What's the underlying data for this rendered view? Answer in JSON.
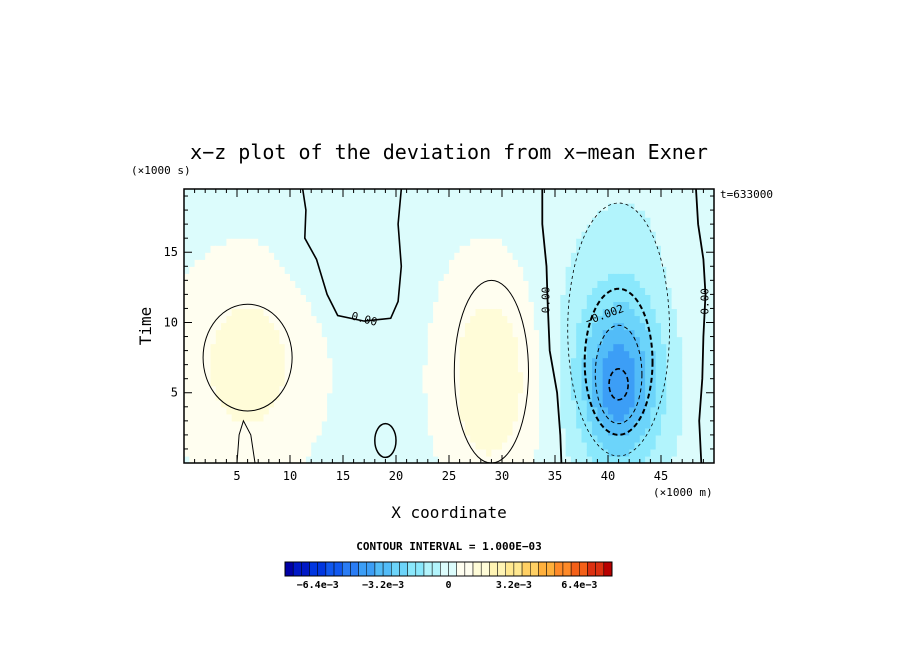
{
  "chart_data": {
    "type": "heatmap",
    "title": "x−z plot of the deviation from x−mean Exner",
    "xlabel": "X coordinate",
    "ylabel": "Time",
    "x_unit": "(×1000 m)",
    "y_unit": "(×1000 s)",
    "time_stamp": "t=633000",
    "xlim": [
      0,
      50
    ],
    "ylim": [
      0,
      19.5
    ],
    "x_ticks": [
      5,
      10,
      15,
      20,
      25,
      30,
      35,
      40,
      45
    ],
    "y_ticks": [
      5,
      10,
      15
    ],
    "contour_interval_text": "CONTOUR INTERVAL = 1.000E−03",
    "contour_labels": [
      {
        "text": "0.00",
        "x": 17,
        "y": 10.2,
        "rotate": 15
      },
      {
        "text": "0.00",
        "x": 34.2,
        "y": 11.6,
        "rotate": -90
      },
      {
        "text": "−0.002",
        "x": 39.7,
        "y": 10.5,
        "rotate": -20
      },
      {
        "text": "0.00",
        "x": 49.2,
        "y": 11.5,
        "rotate": -90
      }
    ],
    "features": [
      {
        "kind": "max",
        "x": 6.0,
        "y": 7.0,
        "value": 0.0015
      },
      {
        "kind": "max",
        "x": 29.0,
        "y": 6.0,
        "value": 0.0018
      },
      {
        "kind": "min",
        "x": 41.0,
        "y": 5.6,
        "value": -0.0035
      },
      {
        "kind": "min",
        "x": 13.5,
        "y": 17.5,
        "value": -0.0006
      }
    ],
    "colorbar": {
      "min": -0.008,
      "max": 0.008,
      "step": 0.0004,
      "tick_labels": [
        "−6.4e−3",
        "−3.2e−3",
        "0",
        "3.2e−3",
        "6.4e−3"
      ],
      "tick_values": [
        -0.0064,
        -0.0032,
        0,
        0.0032,
        0.0064
      ]
    }
  }
}
